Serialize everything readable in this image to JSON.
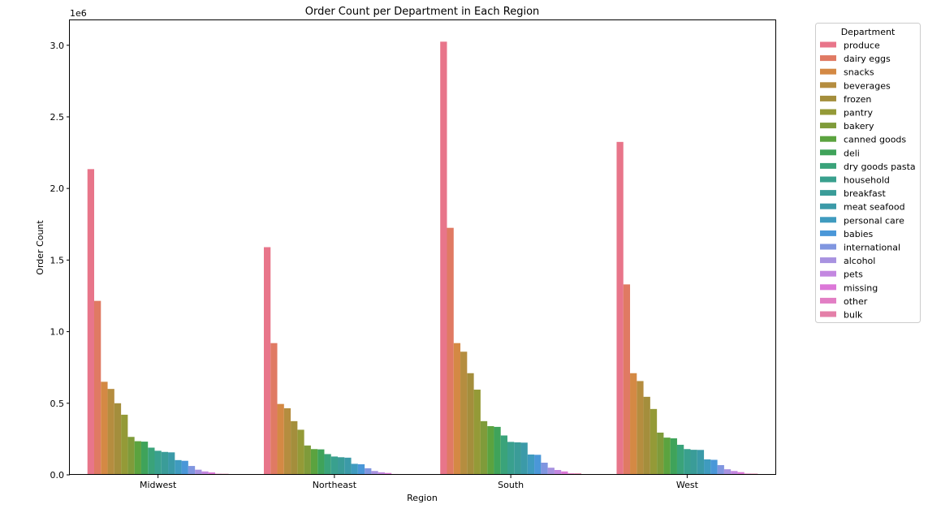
{
  "chart_data": {
    "type": "bar",
    "title": "Order Count per Department in Each Region",
    "xlabel": "Region",
    "ylabel": "Order Count",
    "y_offset_label": "1e6",
    "ylim": [
      0,
      3180000
    ],
    "yticks": [
      0,
      500000,
      1000000,
      1500000,
      2000000,
      2500000,
      3000000
    ],
    "ytick_labels": [
      "0.0",
      "0.5",
      "1.0",
      "1.5",
      "2.0",
      "2.5",
      "3.0"
    ],
    "grid": false,
    "legend_title": "Department",
    "legend_position": "outside top-right",
    "categories": [
      "Midwest",
      "Northeast",
      "South",
      "West"
    ],
    "series": [
      {
        "name": "produce",
        "color": "#e8758a",
        "values": [
          2135000,
          1590000,
          3025000,
          2325000
        ]
      },
      {
        "name": "dairy eggs",
        "color": "#e07a63",
        "values": [
          1215000,
          920000,
          1725000,
          1330000
        ]
      },
      {
        "name": "snacks",
        "color": "#d48944",
        "values": [
          650000,
          495000,
          920000,
          710000
        ]
      },
      {
        "name": "beverages",
        "color": "#b58d3f",
        "values": [
          600000,
          465000,
          860000,
          655000
        ]
      },
      {
        "name": "frozen",
        "color": "#a48e3c",
        "values": [
          500000,
          375000,
          710000,
          545000
        ]
      },
      {
        "name": "pantry",
        "color": "#949a37",
        "values": [
          420000,
          315000,
          595000,
          460000
        ]
      },
      {
        "name": "bakery",
        "color": "#7f9b3a",
        "values": [
          265000,
          205000,
          375000,
          295000
        ]
      },
      {
        "name": "canned goods",
        "color": "#5ba33f",
        "values": [
          235000,
          180000,
          340000,
          260000
        ]
      },
      {
        "name": "deli",
        "color": "#3fa35a",
        "values": [
          232000,
          178000,
          335000,
          255000
        ]
      },
      {
        "name": "dry goods pasta",
        "color": "#3aa37a",
        "values": [
          190000,
          145000,
          275000,
          210000
        ]
      },
      {
        "name": "household",
        "color": "#39a08e",
        "values": [
          168000,
          128000,
          230000,
          180000
        ]
      },
      {
        "name": "breakfast",
        "color": "#3a9c98",
        "values": [
          160000,
          123000,
          227000,
          175000
        ]
      },
      {
        "name": "meat seafood",
        "color": "#3b9aa8",
        "values": [
          157000,
          120000,
          225000,
          174000
        ]
      },
      {
        "name": "personal care",
        "color": "#3f9bbf",
        "values": [
          103000,
          77000,
          142000,
          108000
        ]
      },
      {
        "name": "babies",
        "color": "#4a97d8",
        "values": [
          98000,
          74000,
          140000,
          105000
        ]
      },
      {
        "name": "international",
        "color": "#8096e0",
        "values": [
          62000,
          46000,
          85000,
          68000
        ]
      },
      {
        "name": "alcohol",
        "color": "#a892e0",
        "values": [
          36000,
          27000,
          50000,
          39000
        ]
      },
      {
        "name": "pets",
        "color": "#c387e0",
        "values": [
          24000,
          18000,
          34000,
          27000
        ]
      },
      {
        "name": "missing",
        "color": "#dc78d8",
        "values": [
          17000,
          13000,
          24000,
          19000
        ]
      },
      {
        "name": "other",
        "color": "#e27ec4",
        "values": [
          8000,
          6000,
          11000,
          9000
        ]
      },
      {
        "name": "bulk",
        "color": "#e47fa8",
        "values": [
          7500,
          5500,
          10500,
          8500
        ]
      }
    ]
  }
}
